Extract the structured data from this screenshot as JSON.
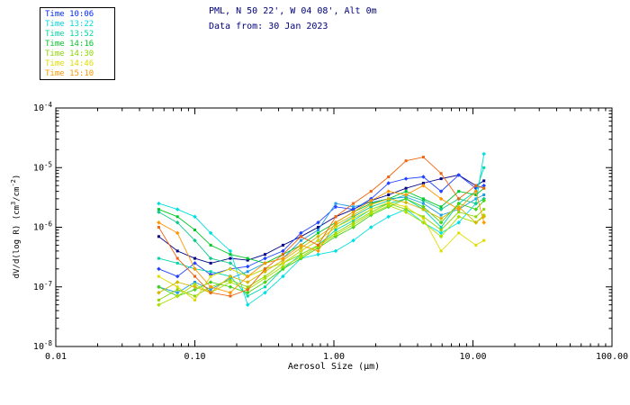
{
  "header": {
    "title_line1": "PML, N 50 22', W 04 08', Alt 0m",
    "title_line2": "Data from: 30 Jan 2023",
    "title_color": "#00007a"
  },
  "legend": {
    "position": "top-left",
    "items": [
      {
        "label": "Time 10:06",
        "color": "#0028ff"
      },
      {
        "label": "Time 13:22",
        "color": "#00dce0"
      },
      {
        "label": "Time 13:52",
        "color": "#00d7a0"
      },
      {
        "label": "Time 14:16",
        "color": "#00c828"
      },
      {
        "label": "Time 14:30",
        "color": "#8cd800"
      },
      {
        "label": "Time 14:46",
        "color": "#e0dc00"
      },
      {
        "label": "Time 15:10",
        "color": "#ff9800"
      }
    ]
  },
  "ylabel_parts": {
    "p1": "dV/d(log R) (cm",
    "s1": "3",
    "p2": "/cm",
    "s2": "-2",
    "p3": ")"
  },
  "chart_data": {
    "type": "line",
    "title": "PML, N 50 22', W 04 08', Alt 0m",
    "subtitle": "Data from: 30 Jan 2023",
    "xlabel": "Aerosol Size (μm)",
    "ylabel": "dV/d(log R) (cm3/cm-2)",
    "xscale": "log",
    "yscale": "log",
    "grid": false,
    "legend_position": "top-left",
    "xlim": [
      0.01,
      100
    ],
    "ylim": [
      1e-08,
      0.0001
    ],
    "xticks": [
      {
        "value": 0.01,
        "label": "0.01"
      },
      {
        "value": 0.1,
        "label": "0.10"
      },
      {
        "value": 1.0,
        "label": "1.00"
      },
      {
        "value": 10.0,
        "label": "10.00"
      },
      {
        "value": 100.0,
        "label": "100.00"
      }
    ],
    "yticks": [
      {
        "value": 1e-08,
        "exp": "-8"
      },
      {
        "value": 1e-07,
        "exp": "-7"
      },
      {
        "value": 1e-06,
        "exp": "-6"
      },
      {
        "value": 1e-05,
        "exp": "-5"
      },
      {
        "value": 0.0001,
        "exp": "-4"
      }
    ],
    "x": [
      0.055,
      0.075,
      0.1,
      0.13,
      0.18,
      0.24,
      0.32,
      0.43,
      0.58,
      0.77,
      1.03,
      1.38,
      1.85,
      2.47,
      3.3,
      4.4,
      5.9,
      7.9,
      10.5,
      12.0
    ],
    "series": [
      {
        "name": "10:06 run1",
        "time": "10:06",
        "color": "#000082",
        "marker": "sq",
        "y": [
          7e-07,
          4e-07,
          3e-07,
          2.5e-07,
          3e-07,
          2.8e-07,
          3.5e-07,
          5e-07,
          7e-07,
          1e-06,
          1.5e-06,
          2e-06,
          2.8e-06,
          3.5e-06,
          4.5e-06,
          5.5e-06,
          6.5e-06,
          7.5e-06,
          5e-06,
          6e-06
        ]
      },
      {
        "name": "10:06 run2",
        "time": "10:06",
        "color": "#2343ff",
        "marker": "di",
        "y": [
          2e-07,
          1.5e-07,
          2.5e-07,
          1.6e-07,
          2e-07,
          2.2e-07,
          3e-07,
          4e-07,
          8e-07,
          1.2e-06,
          2.2e-06,
          2e-06,
          3e-06,
          5.5e-06,
          6.5e-06,
          7e-06,
          4e-06,
          7.5e-06,
          4.5e-06,
          5e-06
        ]
      },
      {
        "name": "13:22 run1",
        "time": "13:22",
        "color": "#1e9de6",
        "marker": "sq",
        "y": [
          1e-07,
          8e-08,
          1.2e-07,
          9e-08,
          1.4e-07,
          1.8e-07,
          2.5e-07,
          3e-07,
          6e-07,
          9e-07,
          2.5e-06,
          2.2e-06,
          2.6e-06,
          3e-06,
          3.2e-06,
          2.5e-06,
          1.6e-06,
          2e-06,
          3e-06,
          3.5e-06
        ]
      },
      {
        "name": "13:22 run2",
        "time": "13:22",
        "color": "#00e0e0",
        "marker": "di",
        "y": [
          2.5e-06,
          2e-06,
          1.5e-06,
          8e-07,
          4e-07,
          5e-08,
          8e-08,
          1.5e-07,
          3e-07,
          3.5e-07,
          4e-07,
          6e-07,
          1e-06,
          1.5e-06,
          2e-06,
          1.2e-06,
          8e-07,
          1.2e-06,
          2.5e-06,
          1.7e-05
        ]
      },
      {
        "name": "13:52 run1",
        "time": "13:52",
        "color": "#00d7a8",
        "marker": "sq",
        "y": [
          3e-07,
          2.5e-07,
          2e-07,
          1.8e-07,
          1.5e-07,
          7e-08,
          1e-07,
          2e-07,
          3.5e-07,
          5e-07,
          9e-07,
          1.3e-06,
          2e-06,
          2.5e-06,
          3e-06,
          2e-06,
          1e-06,
          2.5e-06,
          4e-06,
          1e-05
        ]
      },
      {
        "name": "13:52 run2",
        "time": "13:52",
        "color": "#14c98e",
        "marker": "di",
        "y": [
          1.8e-06,
          1.2e-06,
          6e-07,
          3e-07,
          2.5e-07,
          1.5e-07,
          2e-07,
          2.5e-07,
          4e-07,
          6e-07,
          1e-06,
          1.5e-06,
          2.2e-06,
          2.8e-06,
          3.5e-06,
          2.8e-06,
          2e-06,
          3e-06,
          2.5e-06,
          3e-06
        ]
      },
      {
        "name": "14:16 run1",
        "time": "14:16",
        "color": "#00c828",
        "marker": "sq",
        "y": [
          2e-06,
          1.5e-06,
          9e-07,
          5e-07,
          3.5e-07,
          3e-07,
          2.5e-07,
          3.5e-07,
          5e-07,
          8e-07,
          1.2e-06,
          1.8e-06,
          2.5e-06,
          3e-06,
          4e-06,
          3e-06,
          2.2e-06,
          4e-06,
          3.5e-06,
          4.5e-06
        ]
      },
      {
        "name": "14:16 run2",
        "time": "14:16",
        "color": "#46d216",
        "marker": "di",
        "y": [
          1e-07,
          7e-08,
          9e-08,
          1.2e-07,
          1e-07,
          8e-08,
          1.2e-07,
          2e-07,
          3e-07,
          4.5e-07,
          7e-07,
          1e-06,
          1.6e-06,
          2.2e-06,
          3e-06,
          2.2e-06,
          1.2e-06,
          2.5e-06,
          2e-06,
          2.8e-06
        ]
      },
      {
        "name": "14:30 run1",
        "time": "14:30",
        "color": "#8cd800",
        "marker": "sq",
        "y": [
          6e-08,
          9e-08,
          7e-08,
          1e-07,
          1.3e-07,
          1e-07,
          1.5e-07,
          2.5e-07,
          3.5e-07,
          5e-07,
          8e-07,
          1.2e-06,
          1.8e-06,
          2.5e-06,
          2e-06,
          1.5e-06,
          9e-07,
          1.8e-06,
          1.5e-06,
          2e-06
        ]
      },
      {
        "name": "14:30 run2",
        "time": "14:30",
        "color": "#a8e000",
        "marker": "di",
        "y": [
          5e-08,
          7e-08,
          1.1e-07,
          8e-08,
          1.2e-07,
          9e-08,
          1.4e-07,
          2.2e-07,
          3.2e-07,
          4.8e-07,
          7.5e-07,
          1.1e-06,
          1.7e-06,
          2.3e-06,
          1.8e-06,
          1.2e-06,
          7e-07,
          1.5e-06,
          1.2e-06,
          1.6e-06
        ]
      },
      {
        "name": "14:46 run1",
        "time": "14:46",
        "color": "#e0dc00",
        "marker": "sq",
        "y": [
          1.5e-07,
          1e-07,
          6e-08,
          1.5e-07,
          2e-07,
          1.5e-07,
          2e-07,
          2.5e-07,
          4e-07,
          6e-07,
          1e-06,
          1.4e-06,
          2e-06,
          2.6e-06,
          2.2e-06,
          1.4e-06,
          4e-07,
          8e-07,
          5e-07,
          6e-07
        ]
      },
      {
        "name": "14:46 run2",
        "time": "14:46",
        "color": "#d4b800",
        "marker": "di",
        "y": [
          8e-08,
          1.2e-07,
          1e-07,
          8e-08,
          1.5e-07,
          1.2e-07,
          1.8e-07,
          2.8e-07,
          4.5e-07,
          7e-07,
          1.1e-06,
          1.6e-06,
          2.4e-06,
          3e-06,
          2.6e-06,
          2e-06,
          1.4e-06,
          2.2e-06,
          1.2e-06,
          1.5e-06
        ]
      },
      {
        "name": "15:10 run1",
        "time": "15:10",
        "color": "#f06410",
        "marker": "sq",
        "y": [
          1e-06,
          3e-07,
          1.5e-07,
          8e-08,
          7e-08,
          9e-08,
          2e-07,
          3.5e-07,
          7e-07,
          5e-07,
          1.5e-06,
          2.5e-06,
          4e-06,
          7e-06,
          1.3e-05,
          1.5e-05,
          8e-06,
          3e-06,
          5e-06,
          4.5e-06
        ]
      },
      {
        "name": "15:10 run2",
        "time": "15:10",
        "color": "#ff9800",
        "marker": "di",
        "y": [
          1.2e-06,
          8e-07,
          2e-07,
          1e-07,
          8e-08,
          1.5e-07,
          2.5e-07,
          3e-07,
          5e-07,
          4e-07,
          1.2e-06,
          1.8e-06,
          2.8e-06,
          4e-06,
          3.5e-06,
          5e-06,
          3e-06,
          2e-06,
          4e-06,
          1.2e-06
        ]
      }
    ]
  }
}
